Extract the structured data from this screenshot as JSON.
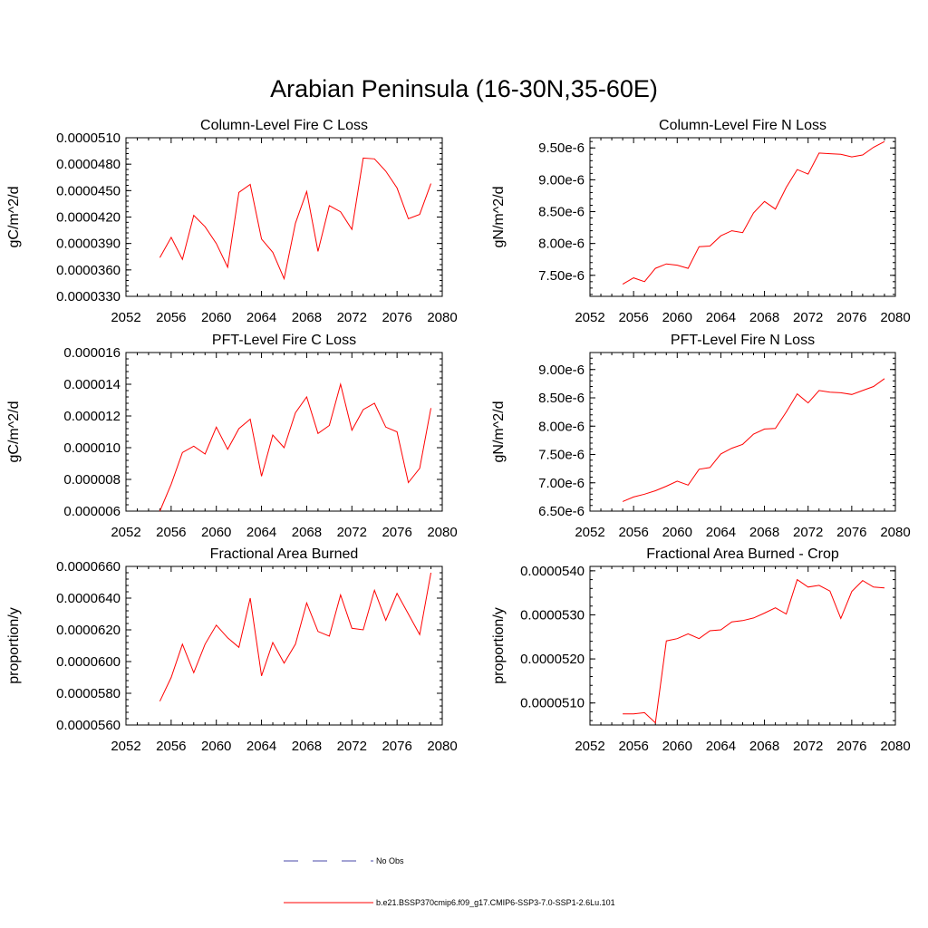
{
  "figure": {
    "title": "Arabian Peninsula (16-30N,35-60E)"
  },
  "colors": {
    "series": "#ff0000",
    "obs": "#4a4aa8",
    "axis": "#000000"
  },
  "chart_data": [
    {
      "type": "line",
      "title": "Column-Level Fire C Loss",
      "ylabel": "gC/m^2/d",
      "xlabel": "",
      "xlim": [
        2052,
        2080
      ],
      "ylim": [
        3.3e-05,
        5.1e-05
      ],
      "xticks": [
        "2052",
        "2056",
        "2060",
        "2064",
        "2068",
        "2072",
        "2076",
        "2080"
      ],
      "yticks": [
        {
          "value": 3.3e-05,
          "label": "0.0000330"
        },
        {
          "value": 3.6e-05,
          "label": "0.0000360"
        },
        {
          "value": 3.9e-05,
          "label": "0.0000390"
        },
        {
          "value": 4.2e-05,
          "label": "0.0000420"
        },
        {
          "value": 4.5e-05,
          "label": "0.0000450"
        },
        {
          "value": 4.8e-05,
          "label": "0.0000480"
        },
        {
          "value": 5.1e-05,
          "label": "0.0000510"
        }
      ],
      "x": [
        2055,
        2056,
        2057,
        2058,
        2059,
        2060,
        2061,
        2062,
        2063,
        2064,
        2065,
        2066,
        2067,
        2068,
        2069,
        2070,
        2071,
        2072,
        2073,
        2074,
        2075,
        2076,
        2077,
        2078,
        2079
      ],
      "y": [
        3.74e-05,
        3.97e-05,
        3.72e-05,
        4.22e-05,
        4.09e-05,
        3.9e-05,
        3.63e-05,
        4.48e-05,
        4.57e-05,
        3.95e-05,
        3.8e-05,
        3.5e-05,
        4.13e-05,
        4.49e-05,
        3.81e-05,
        4.33e-05,
        4.26e-05,
        4.06e-05,
        4.87e-05,
        4.86e-05,
        4.72e-05,
        4.53e-05,
        4.18e-05,
        4.23e-05,
        4.58e-05
      ]
    },
    {
      "type": "line",
      "title": "Column-Level Fire N Loss",
      "ylabel": "gN/m^2/d",
      "xlabel": "",
      "xlim": [
        2052,
        2080
      ],
      "ylim": [
        7.17e-06,
        9.66e-06
      ],
      "xticks": [
        "2052",
        "2056",
        "2060",
        "2064",
        "2068",
        "2072",
        "2076",
        "2080"
      ],
      "yticks": [
        {
          "value": 7.5e-06,
          "label": "7.50e-6"
        },
        {
          "value": 8e-06,
          "label": "8.00e-6"
        },
        {
          "value": 8.5e-06,
          "label": "8.50e-6"
        },
        {
          "value": 9e-06,
          "label": "9.00e-6"
        },
        {
          "value": 9.5e-06,
          "label": "9.50e-6"
        }
      ],
      "x": [
        2055,
        2056,
        2057,
        2058,
        2059,
        2060,
        2061,
        2062,
        2063,
        2064,
        2065,
        2066,
        2067,
        2068,
        2069,
        2070,
        2071,
        2072,
        2073,
        2074,
        2075,
        2076,
        2077,
        2078,
        2079
      ],
      "y": [
        7.36e-06,
        7.46e-06,
        7.4e-06,
        7.61e-06,
        7.68e-06,
        7.66e-06,
        7.61e-06,
        7.95e-06,
        7.96e-06,
        8.12e-06,
        8.2e-06,
        8.17e-06,
        8.48e-06,
        8.66e-06,
        8.54e-06,
        8.88e-06,
        9.16e-06,
        9.09e-06,
        9.42e-06,
        9.41e-06,
        9.4e-06,
        9.36e-06,
        9.39e-06,
        9.51e-06,
        9.6e-06
      ]
    },
    {
      "type": "line",
      "title": "PFT-Level Fire C Loss",
      "ylabel": "gC/m^2/d",
      "xlabel": "",
      "xlim": [
        2052,
        2080
      ],
      "ylim": [
        6e-06,
        1.6e-05
      ],
      "xticks": [
        "2052",
        "2056",
        "2060",
        "2064",
        "2068",
        "2072",
        "2076",
        "2080"
      ],
      "yticks": [
        {
          "value": 6e-06,
          "label": "0.000006"
        },
        {
          "value": 8e-06,
          "label": "0.000008"
        },
        {
          "value": 1e-05,
          "label": "0.000010"
        },
        {
          "value": 1.2e-05,
          "label": "0.000012"
        },
        {
          "value": 1.4e-05,
          "label": "0.000014"
        },
        {
          "value": 1.6e-05,
          "label": "0.000016"
        }
      ],
      "x": [
        2055,
        2056,
        2057,
        2058,
        2059,
        2060,
        2061,
        2062,
        2063,
        2064,
        2065,
        2066,
        2067,
        2068,
        2069,
        2070,
        2071,
        2072,
        2073,
        2074,
        2075,
        2076,
        2077,
        2078,
        2079
      ],
      "y": [
        6e-06,
        7.7e-06,
        9.7e-06,
        1.01e-05,
        9.6e-06,
        1.13e-05,
        9.9e-06,
        1.12e-05,
        1.18e-05,
        8.2e-06,
        1.08e-05,
        1e-05,
        1.22e-05,
        1.32e-05,
        1.09e-05,
        1.14e-05,
        1.4e-05,
        1.11e-05,
        1.24e-05,
        1.28e-05,
        1.13e-05,
        1.1e-05,
        7.8e-06,
        8.7e-06,
        1.25e-05
      ]
    },
    {
      "type": "line",
      "title": "PFT-Level Fire N Loss",
      "ylabel": "gN/m^2/d",
      "xlabel": "",
      "xlim": [
        2052,
        2080
      ],
      "ylim": [
        6.5e-06,
        9.3e-06
      ],
      "xticks": [
        "2052",
        "2056",
        "2060",
        "2064",
        "2068",
        "2072",
        "2076",
        "2080"
      ],
      "yticks": [
        {
          "value": 6.5e-06,
          "label": "6.50e-6"
        },
        {
          "value": 7e-06,
          "label": "7.00e-6"
        },
        {
          "value": 7.5e-06,
          "label": "7.50e-6"
        },
        {
          "value": 8e-06,
          "label": "8.00e-6"
        },
        {
          "value": 8.5e-06,
          "label": "8.50e-6"
        },
        {
          "value": 9e-06,
          "label": "9.00e-6"
        }
      ],
      "x": [
        2055,
        2056,
        2057,
        2058,
        2059,
        2060,
        2061,
        2062,
        2063,
        2064,
        2065,
        2066,
        2067,
        2068,
        2069,
        2070,
        2071,
        2072,
        2073,
        2074,
        2075,
        2076,
        2077,
        2078,
        2079
      ],
      "y": [
        6.67e-06,
        6.75e-06,
        6.8e-06,
        6.86e-06,
        6.94e-06,
        7.03e-06,
        6.96e-06,
        7.24e-06,
        7.27e-06,
        7.51e-06,
        7.61e-06,
        7.68e-06,
        7.86e-06,
        7.95e-06,
        7.96e-06,
        8.25e-06,
        8.57e-06,
        8.41e-06,
        8.63e-06,
        8.6e-06,
        8.59e-06,
        8.56e-06,
        8.63e-06,
        8.7e-06,
        8.84e-06
      ]
    },
    {
      "type": "line",
      "title": "Fractional Area Burned",
      "ylabel": "proportion/y",
      "xlabel": "",
      "xlim": [
        2052,
        2080
      ],
      "ylim": [
        5.6e-05,
        6.6e-05
      ],
      "xticks": [
        "2052",
        "2056",
        "2060",
        "2064",
        "2068",
        "2072",
        "2076",
        "2080"
      ],
      "yticks": [
        {
          "value": 5.6e-05,
          "label": "0.0000560"
        },
        {
          "value": 5.8e-05,
          "label": "0.0000580"
        },
        {
          "value": 6e-05,
          "label": "0.0000600"
        },
        {
          "value": 6.2e-05,
          "label": "0.0000620"
        },
        {
          "value": 6.4e-05,
          "label": "0.0000640"
        },
        {
          "value": 6.6e-05,
          "label": "0.0000660"
        }
      ],
      "x": [
        2055,
        2056,
        2057,
        2058,
        2059,
        2060,
        2061,
        2062,
        2063,
        2064,
        2065,
        2066,
        2067,
        2068,
        2069,
        2070,
        2071,
        2072,
        2073,
        2074,
        2075,
        2076,
        2077,
        2078,
        2079
      ],
      "y": [
        5.75e-05,
        5.9e-05,
        6.11e-05,
        5.93e-05,
        6.11e-05,
        6.23e-05,
        6.15e-05,
        6.09e-05,
        6.4e-05,
        5.91e-05,
        6.12e-05,
        5.99e-05,
        6.11e-05,
        6.37e-05,
        6.19e-05,
        6.16e-05,
        6.42e-05,
        6.21e-05,
        6.2e-05,
        6.45e-05,
        6.26e-05,
        6.43e-05,
        6.3e-05,
        6.17e-05,
        6.56e-05
      ]
    },
    {
      "type": "line",
      "title": "Fractional Area Burned - Crop",
      "ylabel": "proportion/y",
      "xlabel": "",
      "xlim": [
        2052,
        2080
      ],
      "ylim": [
        5.05e-05,
        5.41e-05
      ],
      "xticks": [
        "2052",
        "2056",
        "2060",
        "2064",
        "2068",
        "2072",
        "2076",
        "2080"
      ],
      "yticks": [
        {
          "value": 5.1e-05,
          "label": "0.0000510"
        },
        {
          "value": 5.2e-05,
          "label": "0.0000520"
        },
        {
          "value": 5.3e-05,
          "label": "0.0000530"
        },
        {
          "value": 5.4e-05,
          "label": "0.0000540"
        }
      ],
      "x": [
        2055,
        2056,
        2057,
        2058,
        2059,
        2060,
        2061,
        2062,
        2063,
        2064,
        2065,
        2066,
        2067,
        2068,
        2069,
        2070,
        2071,
        2072,
        2073,
        2074,
        2075,
        2076,
        2077,
        2078,
        2079
      ],
      "y": [
        5.075e-05,
        5.075e-05,
        5.078e-05,
        5.055e-05,
        5.241e-05,
        5.246e-05,
        5.257e-05,
        5.246e-05,
        5.264e-05,
        5.266e-05,
        5.284e-05,
        5.287e-05,
        5.293e-05,
        5.304e-05,
        5.316e-05,
        5.302e-05,
        5.38e-05,
        5.363e-05,
        5.367e-05,
        5.354e-05,
        5.292e-05,
        5.353e-05,
        5.378e-05,
        5.363e-05,
        5.361e-05
      ]
    }
  ],
  "legend": {
    "entries": [
      {
        "label": "No Obs",
        "style": "dashed",
        "color": "#4a4aa8"
      },
      {
        "label": "b.e21.BSSP370cmip6.f09_g17.CMIP6-SSP3-7.0-SSP1-2.6Lu.101",
        "style": "solid",
        "color": "#ff0000"
      }
    ]
  }
}
